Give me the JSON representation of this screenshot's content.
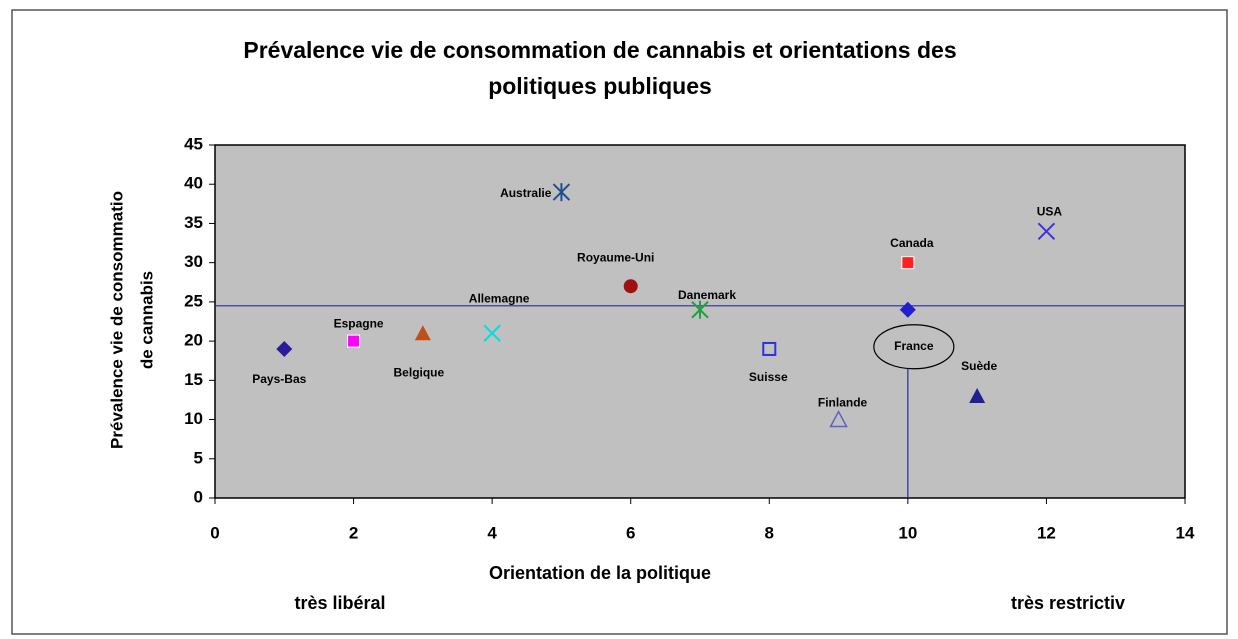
{
  "chart_data": {
    "type": "scatter",
    "title": [
      "Prévalence vie de consommation de cannabis et orientations des",
      "politiques publiques"
    ],
    "x_label": "Orientation de la politique",
    "y_label": [
      "Prévalence vie de consommatio",
      "de cannabis"
    ],
    "annotations": [
      "très libéral",
      "très restrictiv"
    ],
    "xlim": [
      0,
      14
    ],
    "xticks": [
      0,
      2,
      4,
      6,
      8,
      10,
      12,
      14
    ],
    "ylim": [
      0,
      45
    ],
    "yticks": [
      0,
      5,
      10,
      15,
      20,
      25,
      30,
      35,
      40,
      45
    ],
    "plot_background": "#c0c0c0",
    "reference_color": "#2a2aa0",
    "hline": 24.5,
    "vline": {
      "x": 10,
      "ymax": 16.5
    },
    "series": [
      {
        "name": "Pays-Bas",
        "color": "#2b1a9a",
        "marker": "diamond",
        "x": 1,
        "y": 19
      },
      {
        "name": "Espagne",
        "color": "#ff00ff",
        "marker": "square",
        "x": 2,
        "y": 20
      },
      {
        "name": "Belgique",
        "color": "#c0501a",
        "marker": "triangle",
        "x": 3,
        "y": 21
      },
      {
        "name": "Allemagne",
        "color": "#00e0e0",
        "marker": "x",
        "x": 4,
        "y": 21
      },
      {
        "name": "Australie",
        "color": "#1f4f8f",
        "marker": "star",
        "x": 5,
        "y": 39
      },
      {
        "name": "Royaume-Uni",
        "color": "#a01010",
        "marker": "circle",
        "x": 6,
        "y": 27
      },
      {
        "name": "Danemark",
        "color": "#20a040",
        "marker": "star",
        "x": 7,
        "y": 24
      },
      {
        "name": "Suisse",
        "color": "#3030e0",
        "marker": "open-square",
        "x": 8,
        "y": 19
      },
      {
        "name": "Finlande",
        "color": "#6060c0",
        "marker": "open-triangle",
        "x": 9,
        "y": 10
      },
      {
        "name": "France",
        "color": "#2020d0",
        "marker": "diamond",
        "x": 10,
        "y": 24
      },
      {
        "name": "Suède",
        "color": "#20208f",
        "marker": "triangle",
        "x": 11,
        "y": 13
      },
      {
        "name": "Canada",
        "color": "#ff2020",
        "marker": "square",
        "x": 10,
        "y": 30
      },
      {
        "name": "USA",
        "color": "#4030e0",
        "marker": "x",
        "x": 12,
        "y": 34
      }
    ]
  }
}
